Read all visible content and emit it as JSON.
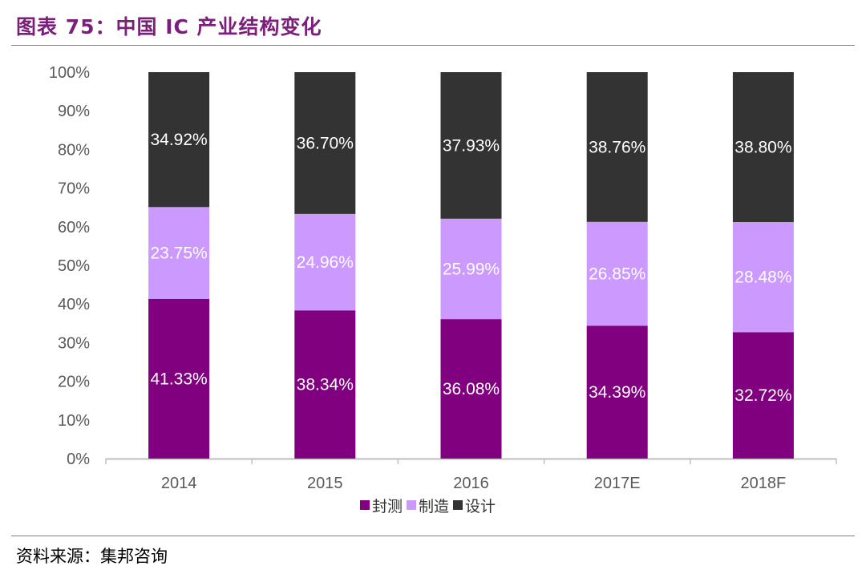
{
  "title": "图表 75：中国 IC 产业结构变化",
  "source": "资料来源：集邦咨询",
  "chart_data": {
    "type": "bar",
    "stacked": true,
    "categories": [
      "2014",
      "2015",
      "2016",
      "2017E",
      "2018F"
    ],
    "series": [
      {
        "name": "封测",
        "color": "#800080",
        "values": [
          41.33,
          38.34,
          36.08,
          34.39,
          32.72
        ],
        "labels": [
          "41.33%",
          "38.34%",
          "36.08%",
          "34.39%",
          "32.72%"
        ]
      },
      {
        "name": "制造",
        "color": "#cc99ff",
        "values": [
          23.75,
          24.96,
          25.99,
          26.85,
          28.48
        ],
        "labels": [
          "23.75%",
          "24.96%",
          "25.99%",
          "26.85%",
          "28.48%"
        ]
      },
      {
        "name": "设计",
        "color": "#333333",
        "values": [
          34.92,
          36.7,
          37.93,
          38.76,
          38.8
        ],
        "labels": [
          "34.92%",
          "36.70%",
          "37.93%",
          "38.76%",
          "38.80%"
        ]
      }
    ],
    "ylim": [
      0,
      100
    ],
    "yticks": [
      "0%",
      "10%",
      "20%",
      "30%",
      "40%",
      "50%",
      "60%",
      "70%",
      "80%",
      "90%",
      "100%"
    ],
    "grid": false,
    "legend": "bottom"
  }
}
